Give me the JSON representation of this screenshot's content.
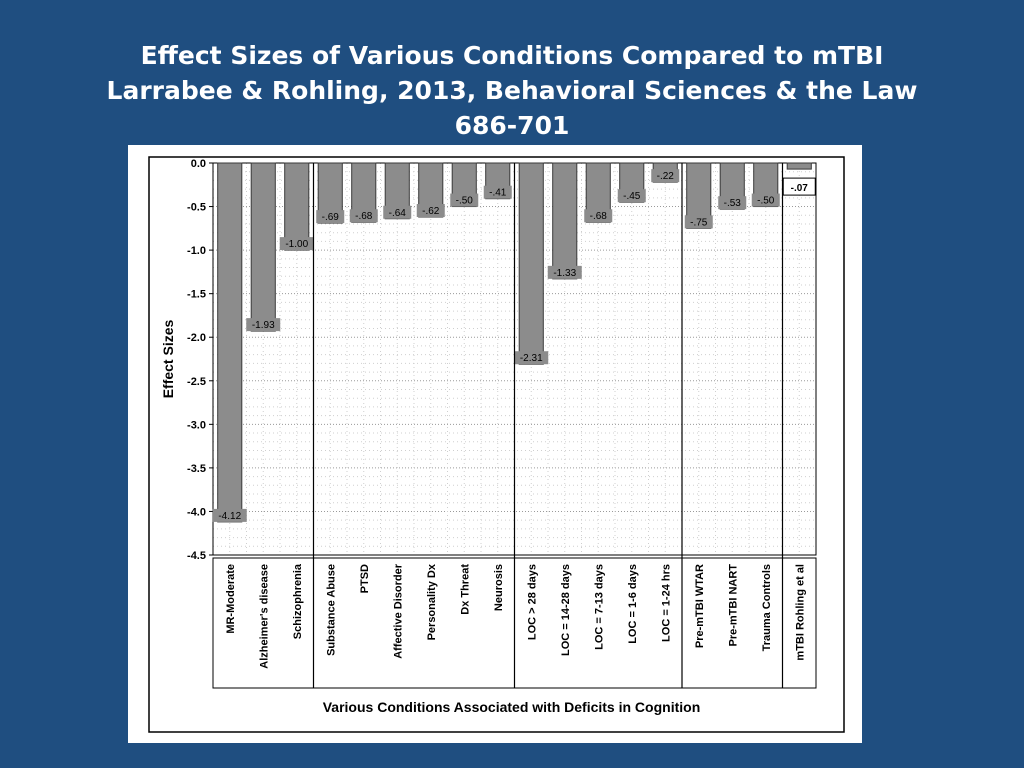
{
  "title": {
    "line1": "Effect Sizes of Various Conditions Compared to mTBI",
    "line2": "Larrabee & Rohling, 2013, Behavioral Sciences & the Law",
    "line3": "686-701"
  },
  "colors": {
    "background": "#1f4e80",
    "bar_fill": "#8c8c8c",
    "bar_stroke": "#3a3a3a"
  },
  "chart_data": {
    "type": "bar",
    "title": "",
    "xlabel": "Various Conditions Associated with Deficits in Cognition",
    "ylabel": "Effect Sizes",
    "ylim": [
      -4.5,
      0.0
    ],
    "yticks": [
      0.0,
      -0.5,
      -1.0,
      -1.5,
      -2.0,
      -2.5,
      -3.0,
      -3.5,
      -4.0,
      -4.5
    ],
    "ytick_labels": [
      "0.0",
      "-0.5",
      "-1.0",
      "-1.5",
      "-2.0",
      "-2.5",
      "-3.0",
      "-3.5",
      "-4.0",
      "-4.5"
    ],
    "grid": true,
    "categories": [
      "MR-Moderate",
      "Alzheimer's disease",
      "Schizophrenia",
      "Substance Abuse",
      "PTSD",
      "Affective Disorder",
      "Personality Dx",
      "Dx Threat",
      "Neurosis",
      "LOC > 28 days",
      "LOC = 14-28 days",
      "LOC = 7-13 days",
      "LOC = 1-6 days",
      "LOC = 1-24 hrs",
      "Pre-mTBI WTAR",
      "Pre-mTBI NART",
      "Trauma Controls",
      "mTBI Rohling et al"
    ],
    "values": [
      -4.12,
      -1.93,
      -1.0,
      -0.69,
      -0.68,
      -0.64,
      -0.62,
      -0.5,
      -0.41,
      -2.31,
      -1.33,
      -0.68,
      -0.45,
      -0.22,
      -0.75,
      -0.53,
      -0.5,
      -0.07
    ],
    "data_labels": [
      "-4.12",
      "-1.93",
      "-1.00",
      "-.69",
      "-.68",
      "-.64",
      "-.62",
      "-.50",
      "-.41",
      "-2.31",
      "-1.33",
      "-.68",
      "-.45",
      "-.22",
      "-.75",
      "-.53",
      "-.50",
      "-.07"
    ],
    "group_boundaries_after_index": [
      2,
      8,
      13,
      16
    ]
  }
}
